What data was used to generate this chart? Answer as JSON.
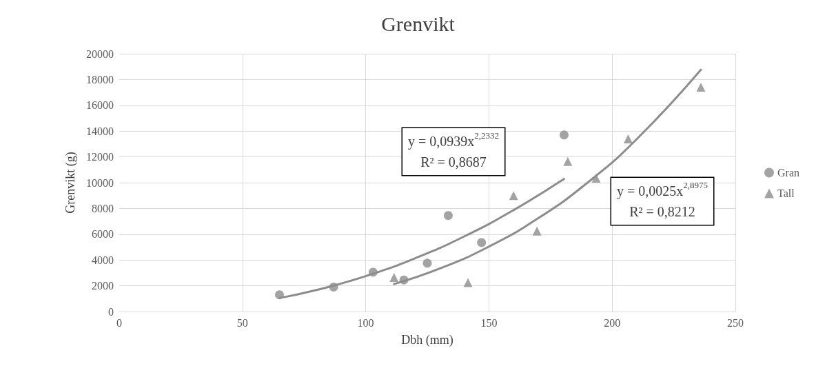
{
  "chart_data": {
    "type": "scatter",
    "title": "Grenvikt",
    "xlabel": "Dbh (mm)",
    "ylabel": "Grenvikt (g)",
    "xlim": [
      0,
      250
    ],
    "xticks": [
      0,
      50,
      100,
      150,
      200,
      250
    ],
    "ylim": [
      0,
      20000
    ],
    "yticks": [
      0,
      2000,
      4000,
      6000,
      8000,
      10000,
      12000,
      14000,
      16000,
      18000,
      20000
    ],
    "grid": true,
    "legend": "right",
    "series": [
      {
        "name": "Gran",
        "marker": "circle",
        "color": "#8c8c8c",
        "x": [
          65,
          87,
          103,
          115.5,
          125,
          133.5,
          147,
          180.5
        ],
        "values": [
          1300,
          1900,
          3050,
          2450,
          3750,
          7450,
          5350,
          13700
        ]
      },
      {
        "name": "Tall",
        "marker": "triangle",
        "color": "#8c8c8c",
        "x": [
          111.5,
          141.5,
          160,
          169.5,
          182,
          193.5,
          206.5,
          236
        ],
        "values": [
          2650,
          2250,
          9000,
          6250,
          11650,
          10350,
          13400,
          17400
        ]
      },
      {
        "type": "line",
        "marker": "none",
        "color": "#8c8c8c",
        "x": [
          65,
          80,
          100,
          120,
          140,
          160,
          180.5
        ],
        "values": [
          1050,
          1670,
          2750,
          4130,
          5830,
          7870,
          10290
        ]
      },
      {
        "type": "line",
        "marker": "none",
        "color": "#8c8c8c",
        "x": [
          111.5,
          130,
          150,
          170,
          190,
          210,
          236
        ],
        "values": [
          2130,
          3330,
          5040,
          7240,
          10000,
          13380,
          18760
        ]
      }
    ],
    "annotations": [
      "y = 0,0939x$^{2,2332}$\nR² = 0,8687",
      "y = 0,0025x$^{2,8975}$\nR² = 0,8212"
    ]
  }
}
